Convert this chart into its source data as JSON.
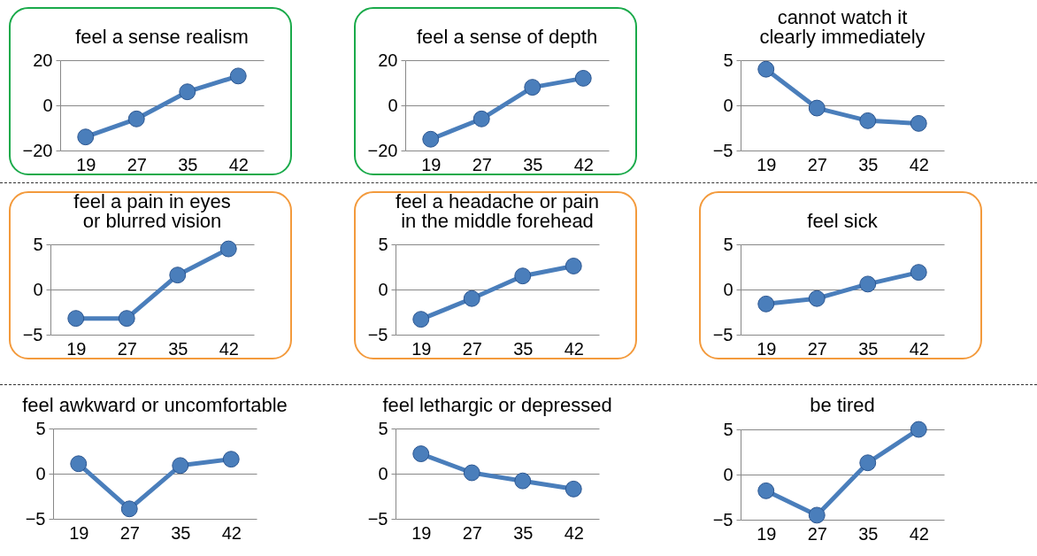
{
  "chart_data": [
    {
      "type": "line",
      "title": "feel a sense realism",
      "categories": [
        "19",
        "27",
        "35",
        "42"
      ],
      "values": [
        -14,
        -6,
        6,
        13
      ],
      "color": "#4a7ebb",
      "ylim": [
        -20,
        20
      ],
      "yticks": [
        -20,
        0,
        20
      ],
      "grid": "y",
      "marker": "circle"
    },
    {
      "type": "line",
      "title": "feel a sense of depth",
      "categories": [
        "19",
        "27",
        "35",
        "42"
      ],
      "values": [
        -15,
        -6,
        8,
        12
      ],
      "color": "#4a7ebb",
      "ylim": [
        -20,
        20
      ],
      "yticks": [
        -20,
        0,
        20
      ],
      "grid": "y",
      "marker": "circle"
    },
    {
      "type": "line",
      "title": "cannot watch it\nclearly immediately",
      "categories": [
        "19",
        "27",
        "35",
        "42"
      ],
      "values": [
        4,
        -0.3,
        -1.7,
        -2
      ],
      "color": "#4a7ebb",
      "ylim": [
        -5,
        5
      ],
      "yticks": [
        -5,
        0,
        5
      ],
      "grid": "y",
      "marker": "circle"
    },
    {
      "type": "line",
      "title": "feel a pain in eyes\nor blurred vision",
      "categories": [
        "19",
        "27",
        "35",
        "42"
      ],
      "values": [
        -3.2,
        -3.2,
        1.6,
        4.5
      ],
      "color": "#4a7ebb",
      "ylim": [
        -5,
        5
      ],
      "yticks": [
        -5,
        0,
        5
      ],
      "grid": "y",
      "marker": "circle"
    },
    {
      "type": "line",
      "title": "feel a headache or pain\nin the middle forehead",
      "categories": [
        "19",
        "27",
        "35",
        "42"
      ],
      "values": [
        -3.3,
        -1,
        1.5,
        2.6
      ],
      "color": "#4a7ebb",
      "ylim": [
        -5,
        5
      ],
      "yticks": [
        -5,
        0,
        5
      ],
      "grid": "y",
      "marker": "circle"
    },
    {
      "type": "line",
      "title": "feel sick",
      "categories": [
        "19",
        "27",
        "35",
        "42"
      ],
      "values": [
        -1.6,
        -1,
        0.6,
        1.9
      ],
      "color": "#4a7ebb",
      "ylim": [
        -5,
        5
      ],
      "yticks": [
        -5,
        0,
        5
      ],
      "grid": "y",
      "marker": "circle"
    },
    {
      "type": "line",
      "title": "feel awkward or uncomfortable",
      "categories": [
        "19",
        "27",
        "35",
        "42"
      ],
      "values": [
        1.1,
        -3.9,
        0.9,
        1.6
      ],
      "color": "#4a7ebb",
      "ylim": [
        -5,
        5
      ],
      "yticks": [
        -5,
        0,
        5
      ],
      "grid": "y",
      "marker": "circle"
    },
    {
      "type": "line",
      "title": "feel lethargic or depressed",
      "categories": [
        "19",
        "27",
        "35",
        "42"
      ],
      "values": [
        2.2,
        0.1,
        -0.8,
        -1.7
      ],
      "color": "#4a7ebb",
      "ylim": [
        -5,
        5
      ],
      "yticks": [
        -5,
        0,
        5
      ],
      "grid": "y",
      "marker": "circle"
    },
    {
      "type": "line",
      "title": "be tired",
      "categories": [
        "19",
        "27",
        "35",
        "42"
      ],
      "values": [
        -1.8,
        -4.5,
        1.3,
        5
      ],
      "color": "#4a7ebb",
      "ylim": [
        -5,
        5
      ],
      "yticks": [
        -5,
        0,
        5
      ],
      "grid": "y",
      "marker": "circle"
    }
  ]
}
